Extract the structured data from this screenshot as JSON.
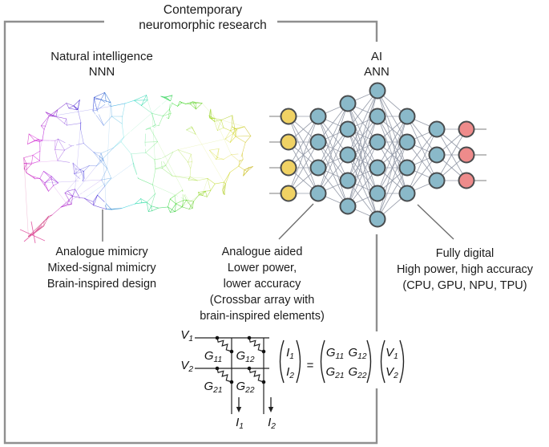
{
  "title": {
    "line1": "Contemporary",
    "line2": "neuromorphic research"
  },
  "natural": {
    "heading_line1": "Natural intelligence",
    "heading_line2": "NNN",
    "caption": [
      "Analogue mimicry",
      "Mixed-signal mimicry",
      "Brain-inspired design"
    ]
  },
  "ai": {
    "heading_line1": "AI",
    "heading_line2": "ANN",
    "caption": [
      "Fully digital",
      "High power, high accuracy",
      "(CPU, GPU, NPU, TPU)"
    ]
  },
  "middle_caption": [
    "Analogue aided",
    "Lower power,",
    "lower accuracy",
    "(Crossbar array with",
    "brain-inspired elements)"
  ],
  "ann": {
    "layers": [
      {
        "count": 4,
        "fill": "#f0d264",
        "role": "input"
      },
      {
        "count": 4,
        "fill": "#8ab9c9",
        "role": "hidden"
      },
      {
        "count": 5,
        "fill": "#8ab9c9",
        "role": "hidden"
      },
      {
        "count": 6,
        "fill": "#8ab9c9",
        "role": "hidden"
      },
      {
        "count": 4,
        "fill": "#8ab9c9",
        "role": "hidden"
      },
      {
        "count": 3,
        "fill": "#8ab9c9",
        "role": "hidden"
      },
      {
        "count": 3,
        "fill": "#ee8b8b",
        "role": "output"
      }
    ],
    "node_stroke": "#494c4e",
    "edge_color": "#8e95a3"
  },
  "crossbar": {
    "row_labels": [
      {
        "base": "V",
        "sub": "1"
      },
      {
        "base": "V",
        "sub": "2"
      }
    ],
    "cell_labels": [
      [
        {
          "base": "G",
          "sub": "11"
        },
        {
          "base": "G",
          "sub": "12"
        }
      ],
      [
        {
          "base": "G",
          "sub": "21"
        },
        {
          "base": "G",
          "sub": "22"
        }
      ]
    ],
    "col_labels": [
      {
        "base": "I",
        "sub": "1"
      },
      {
        "base": "I",
        "sub": "2"
      }
    ],
    "equation": {
      "lhs": [
        {
          "base": "I",
          "sub": "1"
        },
        {
          "base": "I",
          "sub": "2"
        }
      ],
      "equals": "=",
      "matrix": [
        [
          {
            "base": "G",
            "sub": "11"
          },
          {
            "base": "G",
            "sub": "12"
          }
        ],
        [
          {
            "base": "G",
            "sub": "21"
          },
          {
            "base": "G",
            "sub": "22"
          }
        ]
      ],
      "vector": [
        {
          "base": "V",
          "sub": "1"
        },
        {
          "base": "V",
          "sub": "2"
        }
      ]
    }
  },
  "colors": {
    "bracket": "#8f8f8f",
    "leader_line": "#6e6e6e",
    "circuit_ink": "#222222",
    "brain_node": "#ffffff"
  }
}
